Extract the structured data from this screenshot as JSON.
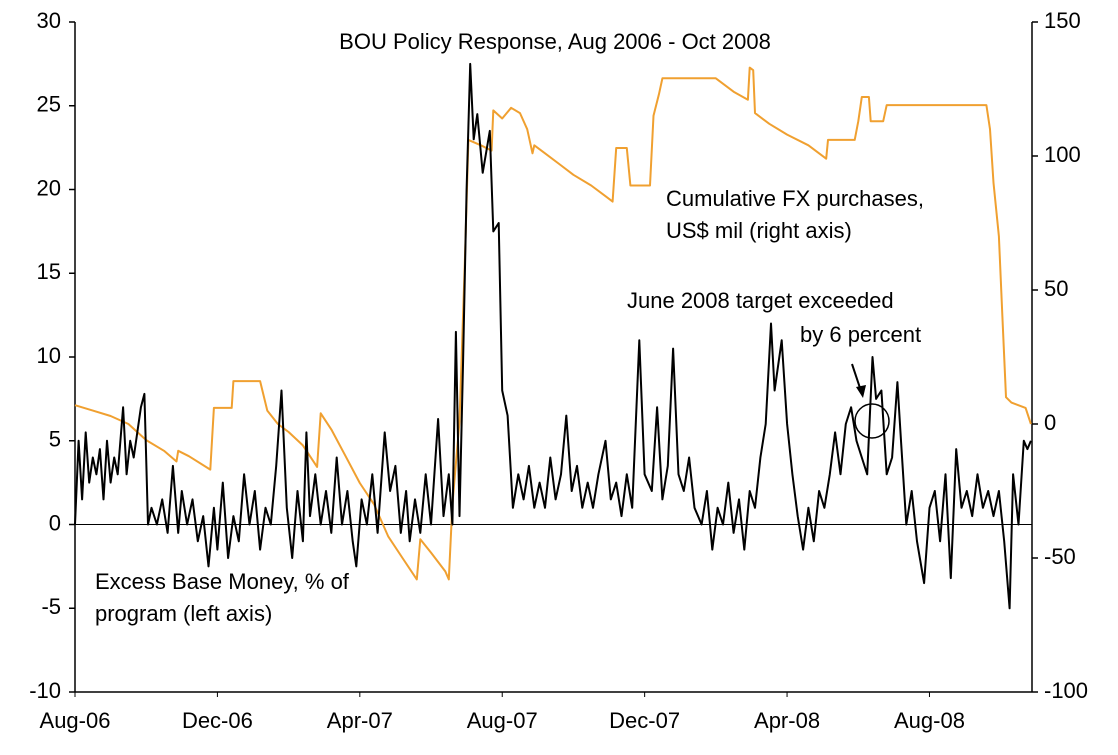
{
  "chart_data": {
    "type": "line",
    "title": "BOU Policy Response, Aug 2006 - Oct 2008",
    "annotations": [
      "Cumulative FX purchases,",
      "US$ mil (right axis)",
      "June 2008 target exceeded",
      "by 6 percent",
      "Excess Base Money, % of",
      "program (left axis)"
    ],
    "xlim": [
      0,
      26.88
    ],
    "xticks": [
      {
        "value": 0,
        "label": "Aug-06"
      },
      {
        "value": 4,
        "label": "Dec-06"
      },
      {
        "value": 8,
        "label": "Apr-07"
      },
      {
        "value": 12,
        "label": "Aug-07"
      },
      {
        "value": 16,
        "label": "Dec-07"
      },
      {
        "value": 20,
        "label": "Apr-08"
      },
      {
        "value": 24,
        "label": "Aug-08"
      }
    ],
    "ylim": [
      -10,
      30
    ],
    "yticks": [
      -10,
      -5,
      0,
      5,
      10,
      15,
      20,
      25,
      30
    ],
    "y2lim": [
      -100,
      150
    ],
    "y2ticks": [
      -100,
      -50,
      0,
      50,
      100,
      150
    ],
    "series": [
      {
        "color": "#000000",
        "axis": "y",
        "x": [
          0,
          0.1,
          0.2,
          0.3,
          0.4,
          0.5,
          0.6,
          0.7,
          0.8,
          0.9,
          1.0,
          1.1,
          1.2,
          1.35,
          1.45,
          1.55,
          1.65,
          1.75,
          1.85,
          1.95,
          2.05,
          2.15,
          2.3,
          2.45,
          2.6,
          2.75,
          2.9,
          3.0,
          3.15,
          3.3,
          3.45,
          3.6,
          3.75,
          3.9,
          4.0,
          4.15,
          4.3,
          4.45,
          4.6,
          4.75,
          4.9,
          5.05,
          5.2,
          5.35,
          5.5,
          5.65,
          5.8,
          5.95,
          6.1,
          6.25,
          6.4,
          6.5,
          6.6,
          6.75,
          6.9,
          7.05,
          7.2,
          7.35,
          7.5,
          7.65,
          7.8,
          7.9,
          8.05,
          8.2,
          8.35,
          8.5,
          8.7,
          8.85,
          9.0,
          9.15,
          9.3,
          9.4,
          9.55,
          9.7,
          9.85,
          10.0,
          10.2,
          10.35,
          10.5,
          10.6,
          10.7,
          10.8,
          10.9,
          11.0,
          11.1,
          11.2,
          11.3,
          11.45,
          11.65,
          11.75,
          11.9,
          12.0,
          12.15,
          12.3,
          12.45,
          12.6,
          12.75,
          12.9,
          13.05,
          13.2,
          13.35,
          13.5,
          13.65,
          13.8,
          13.95,
          14.1,
          14.25,
          14.4,
          14.55,
          14.7,
          14.9,
          15.05,
          15.2,
          15.35,
          15.5,
          15.65,
          15.85,
          16.0,
          16.2,
          16.35,
          16.5,
          16.65,
          16.8,
          16.95,
          17.1,
          17.25,
          17.4,
          17.6,
          17.75,
          17.9,
          18.05,
          18.2,
          18.35,
          18.5,
          18.65,
          18.8,
          18.95,
          19.1,
          19.25,
          19.4,
          19.55,
          19.65,
          19.85,
          20.0,
          20.15,
          20.3,
          20.45,
          20.6,
          20.75,
          20.9,
          21.05,
          21.2,
          21.35,
          21.5,
          21.65,
          21.8,
          21.95,
          22.1,
          22.25,
          22.4,
          22.5,
          22.65,
          22.8,
          22.95,
          23.1,
          23.2,
          23.35,
          23.5,
          23.65,
          23.85,
          24.0,
          24.15,
          24.3,
          24.45,
          24.6,
          24.75,
          24.9,
          25.05,
          25.2,
          25.35,
          25.5,
          25.65,
          25.8,
          25.95,
          26.1,
          26.25,
          26.35,
          26.5,
          26.65,
          26.75,
          26.85
        ],
        "values": [
          0,
          5,
          1.5,
          5.5,
          2.5,
          4,
          3,
          4.5,
          1.5,
          5,
          2.5,
          4,
          3,
          7,
          3,
          5,
          4,
          5.5,
          7,
          7.8,
          0,
          1,
          0,
          1.5,
          -0.5,
          3.5,
          -0.5,
          2,
          0,
          1.5,
          -1,
          0.5,
          -2.5,
          1,
          -1.5,
          2.5,
          -2,
          0.5,
          -1,
          3,
          0,
          2,
          -1.5,
          1,
          0,
          3.5,
          8,
          1,
          -2,
          2,
          -1,
          5.5,
          0.5,
          3,
          0,
          2,
          -0.5,
          4,
          0,
          2,
          -1,
          -2.5,
          1.5,
          0,
          3,
          -0.5,
          5.5,
          2,
          3.5,
          -0.5,
          2,
          -1,
          1.5,
          -0.5,
          3,
          0,
          6.3,
          0.5,
          3,
          0,
          11.5,
          0.5,
          9.8,
          20,
          27.5,
          23,
          24.5,
          21,
          23.5,
          17.5,
          18,
          8,
          6.5,
          1,
          3,
          1.5,
          3.5,
          1,
          2.5,
          1,
          4,
          1.5,
          3,
          6.5,
          2,
          3.5,
          1,
          2.5,
          1,
          3,
          5,
          1.5,
          2.5,
          0.5,
          3,
          1,
          11,
          3,
          2,
          7,
          1.5,
          3.5,
          10.5,
          3,
          2,
          4,
          1,
          0,
          2,
          -1.5,
          1,
          0,
          2.5,
          -0.5,
          1.5,
          -1.5,
          2,
          1,
          4,
          6,
          12,
          8,
          11,
          6,
          3,
          0.5,
          -1.5,
          1,
          -1,
          2,
          1,
          3,
          5.5,
          3,
          6,
          7,
          5,
          4,
          3,
          10,
          7.5,
          8,
          3,
          4,
          8.5,
          5,
          0,
          2,
          -1,
          -3.5,
          1,
          2,
          -1,
          3,
          -3.2,
          4.5,
          1,
          2,
          0.5,
          3,
          1,
          2,
          0.5,
          2,
          -1,
          -5,
          3,
          0,
          5,
          4.5,
          5
        ]
      },
      {
        "color": "#f0a030",
        "axis": "y2",
        "x": [
          0,
          0.5,
          1.0,
          1.5,
          2.0,
          2.5,
          2.85,
          2.9,
          3.2,
          3.8,
          3.9,
          4.4,
          4.45,
          5.2,
          5.4,
          5.7,
          6.0,
          6.4,
          6.8,
          6.9,
          7.2,
          7.6,
          8.0,
          8.4,
          8.8,
          9.2,
          9.6,
          9.7,
          10.0,
          10.4,
          10.5,
          10.6,
          10.8,
          10.95,
          11.05,
          11.4,
          11.7,
          11.75,
          12.0,
          12.25,
          12.5,
          12.7,
          12.85,
          12.9,
          13.2,
          13.6,
          14.0,
          14.5,
          14.9,
          15.1,
          15.2,
          15.5,
          15.6,
          16.15,
          16.25,
          16.4,
          16.5,
          18.0,
          18.5,
          18.9,
          18.95,
          19.05,
          19.1,
          19.5,
          20.0,
          20.6,
          21.1,
          21.15,
          21.9,
          22.0,
          22.1,
          22.3,
          22.35,
          22.7,
          22.8,
          25.6,
          25.7,
          25.8,
          25.95,
          26.05,
          26.15,
          26.3,
          26.7,
          26.85
        ],
        "values": [
          7,
          5,
          3,
          0,
          -6,
          -10,
          -14,
          -10,
          -12,
          -17,
          6,
          6,
          16,
          16,
          5,
          0,
          -3,
          -8,
          -16,
          4,
          -2,
          -12,
          -22,
          -30,
          -42,
          -50,
          -58,
          -43,
          -48,
          -55,
          -58,
          -30,
          1,
          60,
          106,
          104,
          102,
          117,
          114,
          118,
          116,
          110,
          101,
          104,
          101,
          97,
          93,
          89,
          85,
          83,
          103,
          103,
          89,
          89,
          115,
          123,
          129,
          129,
          124,
          121,
          133,
          132,
          116,
          112,
          108,
          104,
          99,
          106,
          106,
          113,
          122,
          122,
          113,
          113,
          119,
          119,
          110,
          90,
          70,
          40,
          10,
          8,
          6,
          0
        ]
      }
    ]
  }
}
